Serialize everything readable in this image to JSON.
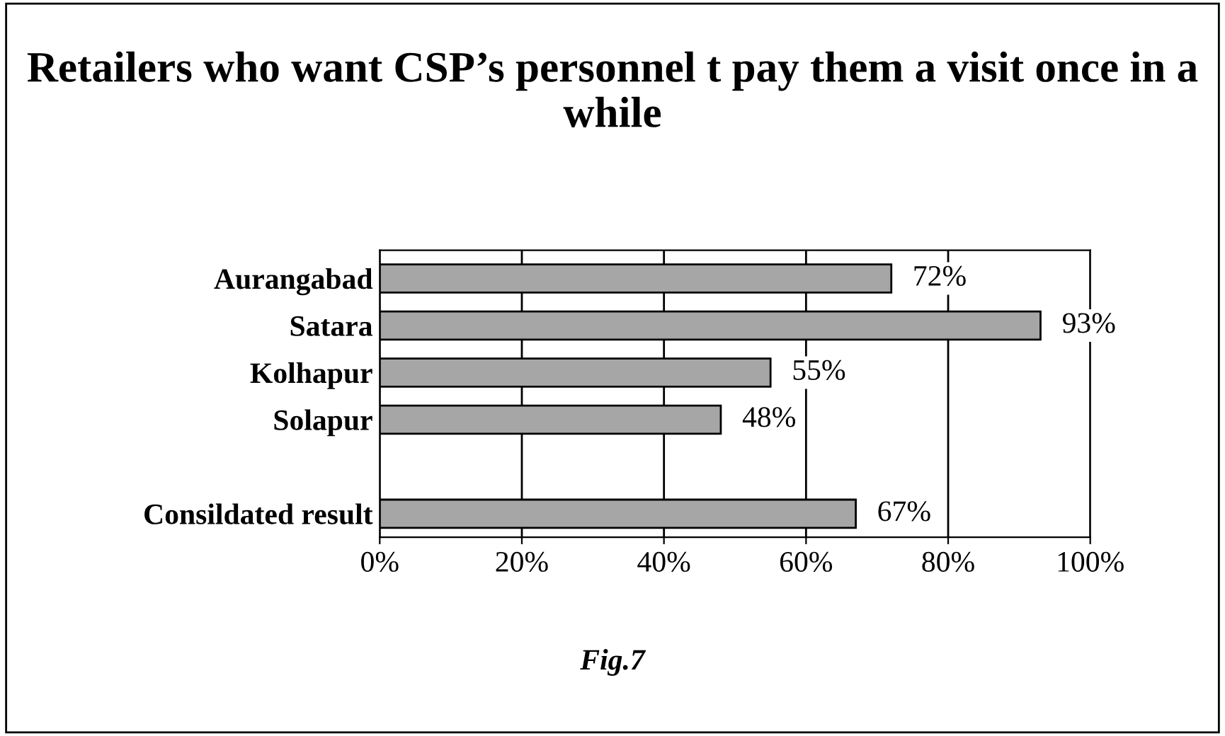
{
  "chart_data": {
    "type": "bar",
    "orientation": "horizontal",
    "title": "Retailers who want CSP’s personnel t pay them a visit once in a while",
    "categories": [
      "Aurangabad",
      "Satara",
      "Kolhapur",
      "Solapur",
      null,
      "Consildated result"
    ],
    "values": [
      72,
      93,
      55,
      48,
      null,
      67
    ],
    "value_labels": [
      "72%",
      "93%",
      "55%",
      "48%",
      null,
      "67%"
    ],
    "color": "#a6a6a6",
    "xlim": [
      0,
      100
    ],
    "xticks": [
      {
        "value": 0,
        "label": "0%"
      },
      {
        "value": 20,
        "label": "20%"
      },
      {
        "value": 40,
        "label": "40%"
      },
      {
        "value": 60,
        "label": "60%"
      },
      {
        "value": 80,
        "label": "80%"
      },
      {
        "value": 100,
        "label": "100%"
      }
    ],
    "grid": "x",
    "annotations": [
      "Fig.7"
    ]
  }
}
